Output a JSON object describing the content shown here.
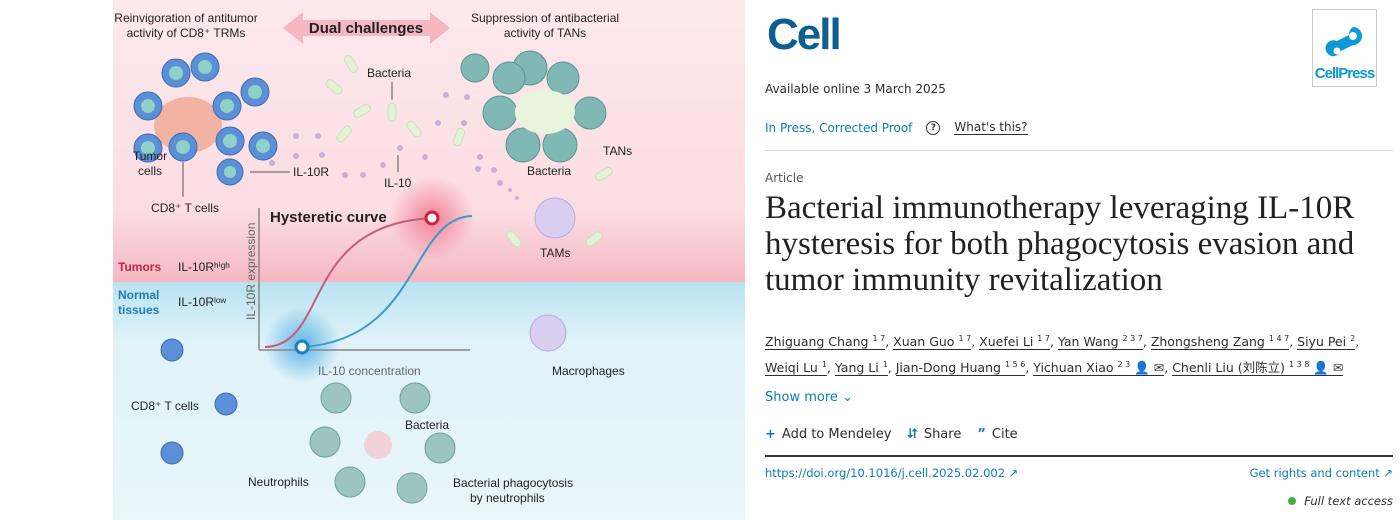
{
  "figure": {
    "top_left": [
      "Reinvigoration of antitumor",
      "activity of CD8⁺ TRMs"
    ],
    "dual": "Dual challenges",
    "top_right": [
      "Suppression of antibacterial",
      "activity of TANs"
    ],
    "bacteria": "Bacteria",
    "tumor_cells": [
      "Tumor",
      "cells"
    ],
    "il10r": "IL-10R",
    "il10": "IL-10",
    "cd8_top": "CD8⁺ T cells",
    "bacteria_tan": "Bacteria",
    "tans": "TANs",
    "tams": "TAMs",
    "hysteretic": "Hysteretic curve",
    "tumors": "Tumors",
    "il10r_high": "IL-10Rʰⁱᵍʰ",
    "normal": [
      "Normal",
      "tissues"
    ],
    "il10r_low": "IL-10Rˡᵒʷ",
    "yaxis": "IL-10R expression",
    "xaxis": "IL-10 concentration",
    "macrophages": "Macrophages",
    "cd8_bottom": "CD8⁺ T cells",
    "bacteria_bottom": "Bacteria",
    "neutrophils": "Neutrophils",
    "phago": [
      "Bacterial phagocytosis",
      "by neutrophils"
    ]
  },
  "journal": {
    "logo": "Cell",
    "publisher_logo": "CellPress"
  },
  "available": "Available online 3 March 2025",
  "status": {
    "label": "In Press, Corrected Proof",
    "help": "?",
    "whats": "What's this?"
  },
  "article_type": "Article",
  "title": "Bacterial immunotherapy leveraging IL-10R hysteresis for both phagocytosis evasion and tumor immunity revitalization",
  "authors": [
    {
      "name": "Zhiguang Chang",
      "sup": "1 7"
    },
    {
      "name": "Xuan Guo",
      "sup": "1 7"
    },
    {
      "name": "Xuefei Li",
      "sup": "1 7"
    },
    {
      "name": "Yan Wang",
      "sup": "2 3 7"
    },
    {
      "name": "Zhongsheng Zang",
      "sup": "1 4 7"
    },
    {
      "name": "Siyu Pei",
      "sup": "2"
    },
    {
      "name": "Weiqi Lu",
      "sup": "1"
    },
    {
      "name": "Yang Li",
      "sup": "1"
    },
    {
      "name": "Jian-Dong Huang",
      "sup": "1 5 6"
    },
    {
      "name": "Yichuan Xiao",
      "sup": "2 3",
      "icons": "👤 ✉"
    },
    {
      "name": "Chenli Liu (刘陈立)",
      "sup": "1 3 8",
      "icons": "👤 ✉"
    }
  ],
  "show_more": "Show more",
  "actions": {
    "mendeley": "Add to Mendeley",
    "share": "Share",
    "cite": "Cite"
  },
  "doi": "https://doi.org/10.1016/j.cell.2025.02.002 ↗",
  "rights": "Get rights and content ↗",
  "access": "Full text access",
  "colors": {
    "link": "#0c7dbb",
    "cell_logo": "#0e5f8f",
    "tumor_zone": "#fbe3e7",
    "normal_zone": "#e2f3f8",
    "access_dot": "#3fae3f"
  }
}
